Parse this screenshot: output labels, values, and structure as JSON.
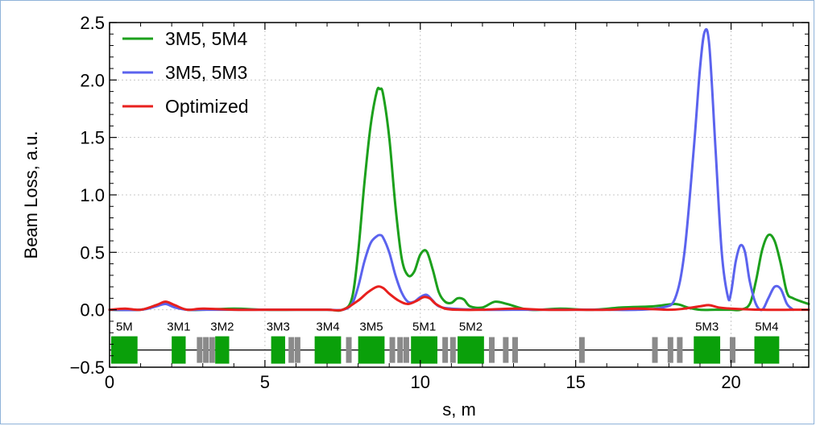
{
  "chart_data": {
    "type": "line",
    "title": "",
    "xlabel": "s, m",
    "ylabel": "Beam Loss, a.u.",
    "xlim": [
      0,
      22.5
    ],
    "ylim": [
      -0.5,
      2.5
    ],
    "xticks": [
      0,
      5,
      10,
      15,
      20
    ],
    "xtick_labels": [
      "0",
      "5",
      "10",
      "15",
      "20"
    ],
    "yticks": [
      -0.5,
      0.0,
      0.5,
      1.0,
      1.5,
      2.0,
      2.5
    ],
    "ytick_labels": [
      "−0.5",
      "0.0",
      "0.5",
      "1.0",
      "1.5",
      "2.0",
      "2.5"
    ],
    "grid": true,
    "legend_position": "top-left",
    "series": [
      {
        "name": "3M5, 5M4",
        "color": "#1ca01c",
        "x": [
          0,
          1.0,
          1.5,
          1.8,
          2.1,
          2.5,
          3.0,
          4.0,
          5.0,
          6.0,
          7.0,
          7.5,
          7.8,
          8.0,
          8.2,
          8.4,
          8.6,
          8.7,
          8.8,
          9.0,
          9.2,
          9.4,
          9.6,
          9.8,
          10.0,
          10.2,
          10.4,
          10.6,
          10.8,
          11.0,
          11.2,
          11.4,
          11.6,
          12.0,
          12.4,
          12.8,
          13.5,
          14.5,
          15.5,
          16.5,
          17.5,
          18.2,
          18.6,
          19.0,
          19.5,
          20.0,
          20.3,
          20.6,
          20.8,
          21.0,
          21.2,
          21.4,
          21.6,
          21.8,
          22.0,
          22.5
        ],
        "y": [
          0.0,
          0.0,
          0.04,
          0.06,
          0.03,
          0.0,
          0.0,
          0.01,
          0.0,
          0.0,
          0.0,
          0.0,
          0.1,
          0.5,
          1.1,
          1.6,
          1.9,
          1.92,
          1.88,
          1.5,
          0.9,
          0.45,
          0.3,
          0.33,
          0.48,
          0.51,
          0.35,
          0.15,
          0.07,
          0.06,
          0.1,
          0.09,
          0.03,
          0.02,
          0.07,
          0.05,
          0.0,
          0.01,
          0.0,
          0.02,
          0.03,
          0.05,
          0.02,
          0.0,
          0.0,
          0.0,
          0.0,
          0.05,
          0.25,
          0.52,
          0.65,
          0.6,
          0.4,
          0.15,
          0.1,
          0.05
        ]
      },
      {
        "name": "3M5, 5M3",
        "color": "#5b63ee",
        "x": [
          0,
          1.0,
          1.5,
          1.8,
          2.1,
          2.5,
          3.0,
          4.0,
          5.0,
          6.0,
          7.0,
          7.5,
          7.8,
          8.0,
          8.2,
          8.4,
          8.6,
          8.7,
          8.8,
          9.0,
          9.2,
          9.4,
          9.6,
          9.8,
          10.0,
          10.2,
          10.4,
          10.6,
          11.0,
          12.0,
          13.0,
          14.0,
          15.0,
          16.0,
          17.0,
          17.8,
          18.2,
          18.5,
          18.8,
          19.0,
          19.15,
          19.3,
          19.5,
          19.7,
          19.9,
          20.0,
          20.15,
          20.3,
          20.45,
          20.6,
          20.8,
          21.0,
          21.2,
          21.4,
          21.6,
          21.8,
          22.0
        ],
        "y": [
          0.0,
          0.0,
          0.03,
          0.05,
          0.02,
          0.0,
          0.0,
          0.0,
          0.0,
          0.0,
          0.0,
          0.0,
          0.05,
          0.2,
          0.42,
          0.58,
          0.64,
          0.65,
          0.63,
          0.5,
          0.3,
          0.15,
          0.07,
          0.07,
          0.11,
          0.13,
          0.08,
          0.03,
          0.01,
          0.0,
          0.0,
          0.0,
          0.0,
          0.0,
          0.0,
          0.02,
          0.1,
          0.5,
          1.4,
          2.1,
          2.42,
          2.3,
          1.4,
          0.5,
          0.11,
          0.15,
          0.42,
          0.56,
          0.5,
          0.25,
          0.05,
          0.0,
          0.1,
          0.2,
          0.18,
          0.05,
          0.0
        ]
      },
      {
        "name": "Optimized",
        "color": "#e8201e",
        "x": [
          0,
          0.5,
          1.0,
          1.5,
          1.8,
          2.1,
          2.5,
          3.0,
          4.0,
          5.0,
          6.0,
          7.0,
          7.5,
          8.0,
          8.3,
          8.6,
          8.8,
          9.0,
          9.3,
          9.6,
          9.9,
          10.1,
          10.3,
          10.5,
          10.8,
          11.2,
          12.0,
          13.0,
          14.0,
          15.0,
          16.0,
          17.0,
          18.0,
          18.5,
          19.0,
          19.3,
          19.6,
          20.0,
          21.0,
          22.0,
          22.5
        ],
        "y": [
          0.0,
          0.01,
          0.0,
          0.04,
          0.07,
          0.04,
          0.0,
          0.01,
          0.0,
          0.0,
          0.0,
          0.0,
          0.0,
          0.08,
          0.15,
          0.2,
          0.19,
          0.14,
          0.08,
          0.05,
          0.08,
          0.11,
          0.1,
          0.05,
          0.01,
          0.0,
          0.0,
          0.01,
          0.0,
          0.0,
          0.0,
          0.01,
          0.0,
          0.01,
          0.03,
          0.04,
          0.02,
          0.01,
          0.0,
          0.0,
          0.0
        ]
      }
    ],
    "lattice": {
      "baseline_y": -0.35,
      "quad_color": "#0aa00a",
      "corrector_color": "#8a8a8a",
      "line_color": "#000000",
      "quadrupoles": [
        {
          "label": "5M",
          "x0": 0.0,
          "x1": 0.9
        },
        {
          "label": "3M1",
          "x0": 2.0,
          "x1": 2.45
        },
        {
          "label": "3M2",
          "x0": 3.4,
          "x1": 3.85
        },
        {
          "label": "3M3",
          "x0": 5.2,
          "x1": 5.65
        },
        {
          "label": "3M4",
          "x0": 6.6,
          "x1": 7.45
        },
        {
          "label": "3M5",
          "x0": 8.0,
          "x1": 8.85
        },
        {
          "label": "5M1",
          "x0": 9.7,
          "x1": 10.55
        },
        {
          "label": "5M2",
          "x0": 11.2,
          "x1": 12.05
        },
        {
          "label": "5M3",
          "x0": 18.8,
          "x1": 19.65
        },
        {
          "label": "5M4",
          "x0": 20.75,
          "x1": 21.55
        }
      ],
      "correctors": [
        2.9,
        3.1,
        3.3,
        5.85,
        6.05,
        7.7,
        9.1,
        9.35,
        9.55,
        10.8,
        11.05,
        12.3,
        12.75,
        13.05,
        15.2,
        17.55,
        18.05,
        18.35,
        20.05
      ]
    }
  }
}
